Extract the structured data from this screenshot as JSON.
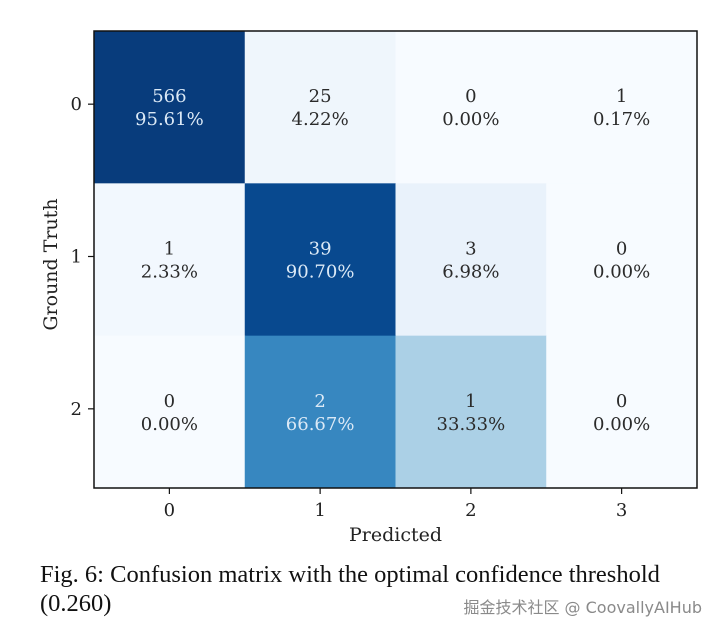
{
  "chart_data": {
    "type": "heatmap",
    "title": "",
    "xlabel": "Predicted",
    "ylabel": "Ground Truth",
    "x_ticks": [
      "0",
      "1",
      "2",
      "3"
    ],
    "y_ticks": [
      "0",
      "1",
      "2"
    ],
    "colormap": "Blues",
    "counts": [
      [
        566,
        25,
        0,
        1
      ],
      [
        1,
        39,
        3,
        0
      ],
      [
        0,
        2,
        1,
        0
      ]
    ],
    "percent_labels": [
      [
        "95.61%",
        "4.22%",
        "0.00%",
        "0.17%"
      ],
      [
        "2.33%",
        "90.70%",
        "6.98%",
        "0.00%"
      ],
      [
        "0.00%",
        "66.67%",
        "33.33%",
        "0.00%"
      ]
    ],
    "row_normalized": [
      [
        0.9561,
        0.0422,
        0.0,
        0.0017
      ],
      [
        0.0233,
        0.907,
        0.0698,
        0.0
      ],
      [
        0.0,
        0.6667,
        0.3333,
        0.0
      ]
    ],
    "value_range": [
      0,
      1
    ],
    "grid": false,
    "legend": "none"
  },
  "caption": {
    "text": "Fig. 6: Confusion matrix with the optimal confidence threshold (0.260)"
  },
  "watermark": {
    "text": "掘金技术社区 @ CoovallyAIHub"
  },
  "colors": {
    "dark_text": "#2b2b2b",
    "light_text": "#dbe9f6"
  }
}
